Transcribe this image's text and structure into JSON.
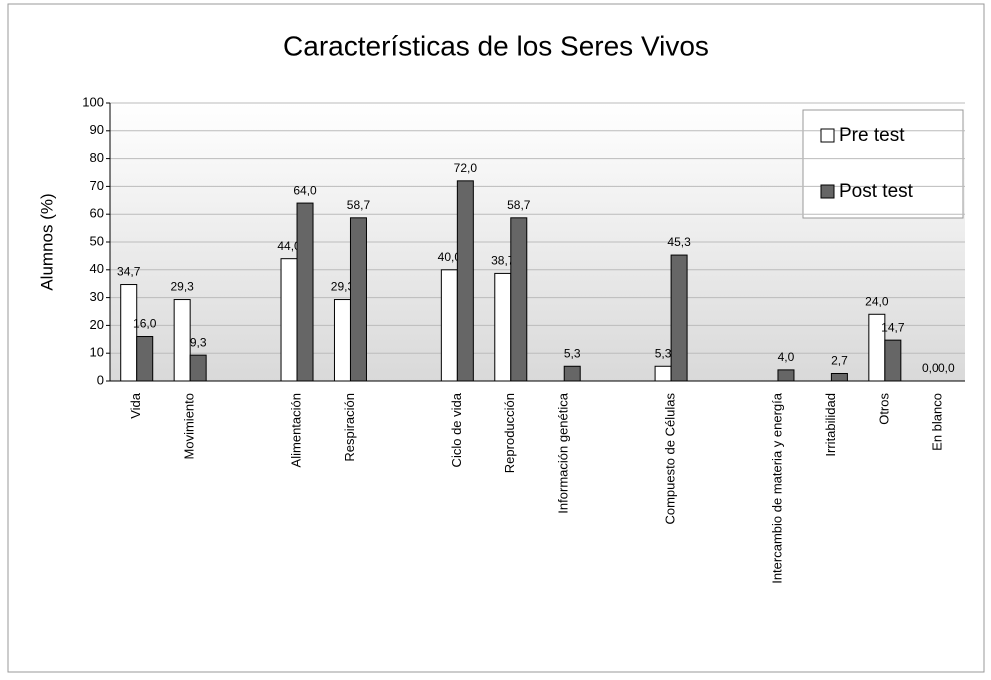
{
  "chart_data": {
    "type": "bar",
    "title": "Características de los Seres Vivos",
    "y_label": "Alumnos (%)",
    "categories": [
      "Vida",
      "Movimiento",
      null,
      "Alimentación",
      "Respiración",
      null,
      "Ciclo de vida",
      "Reproducción",
      "Información genética",
      null,
      "Compuesto de Células",
      null,
      "Intercambio de materia y energía",
      "Irritabilidad",
      "Otros",
      "En blanco"
    ],
    "series": [
      {
        "name": "Pre test",
        "color": "#ffffff",
        "values": [
          34.7,
          29.3,
          null,
          44.0,
          29.3,
          null,
          40.0,
          38.7,
          null,
          null,
          5.3,
          null,
          null,
          null,
          24.0,
          0.0
        ],
        "value_labels": [
          "34,7",
          "29,3",
          null,
          "44,0",
          "29,3",
          null,
          "40,0",
          "38,7",
          null,
          null,
          "5,3",
          null,
          null,
          null,
          "24,0",
          "0,0"
        ]
      },
      {
        "name": "Post test",
        "color": "#666666",
        "values": [
          16.0,
          9.3,
          null,
          64.0,
          58.7,
          null,
          72.0,
          58.7,
          5.3,
          null,
          45.3,
          null,
          4.0,
          2.7,
          14.7,
          0.0
        ],
        "value_labels": [
          "16,0",
          "9,3",
          null,
          "64,0",
          "58,7",
          null,
          "72,0",
          "58,7",
          "5,3",
          null,
          "45,3",
          null,
          "4,0",
          "2,7",
          "14,7",
          "0,0"
        ]
      }
    ],
    "ylim": [
      0,
      100
    ],
    "yticks": [
      0,
      10,
      20,
      30,
      40,
      50,
      60,
      70,
      80,
      90,
      100
    ],
    "grid": true,
    "legend": "top-right"
  }
}
